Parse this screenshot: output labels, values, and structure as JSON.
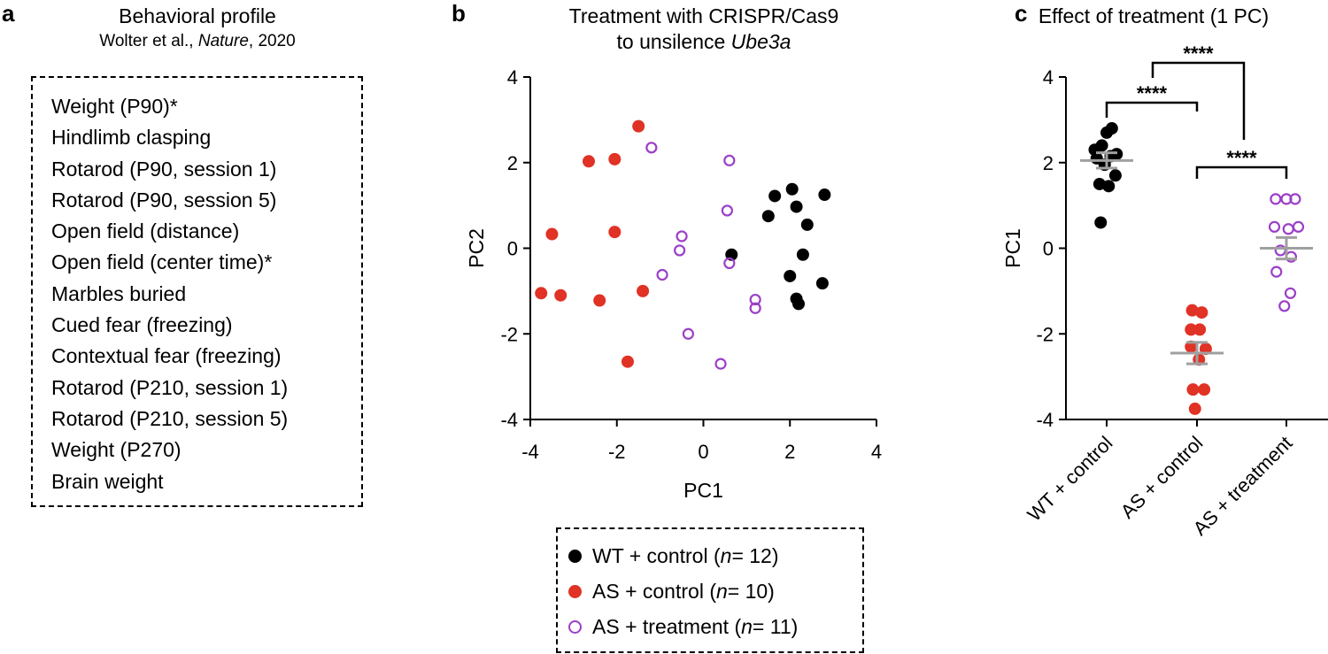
{
  "panel_a": {
    "letter": "a",
    "title": "Behavioral profile",
    "citation_authors": "Wolter et al., ",
    "citation_journal": "Nature",
    "citation_year": ", 2020",
    "measures": [
      "Weight (P90)*",
      "Hindlimb clasping",
      "Rotarod (P90, session 1)",
      "Rotarod (P90, session 5)",
      "Open field (distance)",
      "Open field (center time)*",
      "Marbles buried",
      "Cued fear (freezing)",
      "Contextual fear (freezing)",
      "Rotarod (P210, session 1)",
      "Rotarod (P210, session 5)",
      "Weight (P270)",
      "Brain weight"
    ]
  },
  "panel_b": {
    "letter": "b",
    "title_line1": "Treatment with CRISPR/Cas9",
    "title_line2_prefix": "to unsilence ",
    "title_line2_gene": "Ube3a"
  },
  "panel_c": {
    "letter": "c",
    "title": "Effect of treatment (1 PC)"
  },
  "legend": {
    "items": [
      {
        "label_prefix": "WT + control (",
        "n_label": "n",
        "label_suffix": " = 12)"
      },
      {
        "label_prefix": "AS + control (",
        "n_label": "n",
        "label_suffix": " = 10)"
      },
      {
        "label_prefix": "AS + treatment (",
        "n_label": "n",
        "label_suffix": " = 11)"
      }
    ]
  },
  "colors": {
    "wt": "#000000",
    "as_control": "#e03225",
    "as_treatment": "#9b3fc7",
    "mean_bar": "#a0a0a0"
  },
  "chart_data": [
    {
      "type": "scatter",
      "title": "Treatment with CRISPR/Cas9 to unsilence Ube3a",
      "xlabel": "PC1",
      "ylabel": "PC2",
      "xlim": [
        -4,
        4
      ],
      "ylim": [
        -4,
        4
      ],
      "xticks": [
        -4,
        -2,
        0,
        2,
        4
      ],
      "yticks": [
        -4,
        -2,
        0,
        2,
        4
      ],
      "series": [
        {
          "name": "WT + control",
          "style": "filled",
          "color_key": "wt",
          "points": [
            [
              1.65,
              1.22
            ],
            [
              2.05,
              1.38
            ],
            [
              2.8,
              1.25
            ],
            [
              1.5,
              0.75
            ],
            [
              2.15,
              0.97
            ],
            [
              2.4,
              0.55
            ],
            [
              0.65,
              -0.15
            ],
            [
              2.3,
              -0.15
            ],
            [
              2.0,
              -0.65
            ],
            [
              2.75,
              -0.82
            ],
            [
              2.15,
              -1.18
            ],
            [
              2.2,
              -1.3
            ]
          ]
        },
        {
          "name": "AS + control",
          "style": "filled",
          "color_key": "as_control",
          "points": [
            [
              -1.5,
              2.85
            ],
            [
              -2.65,
              2.03
            ],
            [
              -2.05,
              2.08
            ],
            [
              -3.5,
              0.33
            ],
            [
              -2.05,
              0.38
            ],
            [
              -3.75,
              -1.05
            ],
            [
              -3.3,
              -1.1
            ],
            [
              -1.4,
              -1.0
            ],
            [
              -2.4,
              -1.22
            ],
            [
              -1.75,
              -2.65
            ]
          ]
        },
        {
          "name": "AS + treatment",
          "style": "hollow",
          "color_key": "as_treatment",
          "points": [
            [
              -1.2,
              2.35
            ],
            [
              0.6,
              2.05
            ],
            [
              0.55,
              0.88
            ],
            [
              -0.5,
              0.28
            ],
            [
              -0.55,
              -0.05
            ],
            [
              0.6,
              -0.35
            ],
            [
              -0.95,
              -0.62
            ],
            [
              1.2,
              -1.2
            ],
            [
              1.2,
              -1.4
            ],
            [
              -0.35,
              -2.0
            ],
            [
              0.4,
              -2.7
            ]
          ]
        }
      ]
    },
    {
      "type": "scatter",
      "title": "Effect of treatment (1 PC)",
      "xlabel": "",
      "ylabel": "PC1",
      "ylim": [
        -4,
        4
      ],
      "yticks": [
        -4,
        -2,
        0,
        2,
        4
      ],
      "categories": [
        "WT + control",
        "AS + control",
        "AS + treatment"
      ],
      "series": [
        {
          "name": "WT + control",
          "style": "filled",
          "color_key": "wt",
          "points": [
            [
              -0.3,
              2.3
            ],
            [
              -0.12,
              2.4
            ],
            [
              0.0,
              2.7
            ],
            [
              0.13,
              2.8
            ],
            [
              -0.25,
              2.1
            ],
            [
              0.1,
              2.15
            ],
            [
              0.25,
              2.2
            ],
            [
              -0.05,
              1.95
            ],
            [
              0.22,
              1.7
            ],
            [
              0.05,
              1.45
            ],
            [
              -0.18,
              1.5
            ],
            [
              -0.15,
              0.6
            ]
          ],
          "mean": 2.05,
          "sem": 0.18
        },
        {
          "name": "AS + control",
          "style": "filled",
          "color_key": "as_control",
          "points": [
            [
              -0.12,
              -1.45
            ],
            [
              0.12,
              -1.5
            ],
            [
              -0.15,
              -1.9
            ],
            [
              0.07,
              -1.9
            ],
            [
              -0.15,
              -2.3
            ],
            [
              0.22,
              -2.35
            ],
            [
              0.05,
              -2.6
            ],
            [
              -0.1,
              -3.3
            ],
            [
              0.18,
              -3.3
            ],
            [
              -0.05,
              -3.75
            ]
          ],
          "mean": -2.45,
          "sem": 0.25
        },
        {
          "name": "AS + treatment",
          "style": "hollow",
          "color_key": "as_treatment",
          "points": [
            [
              -0.27,
              1.15
            ],
            [
              0.0,
              1.15
            ],
            [
              0.22,
              1.15
            ],
            [
              -0.3,
              0.5
            ],
            [
              0.05,
              0.45
            ],
            [
              0.3,
              0.5
            ],
            [
              -0.15,
              -0.05
            ],
            [
              0.12,
              -0.2
            ],
            [
              -0.25,
              -0.55
            ],
            [
              0.1,
              -1.05
            ],
            [
              -0.05,
              -1.35
            ]
          ],
          "mean": 0.0,
          "sem": 0.25
        }
      ],
      "significance": [
        {
          "from": "WT + control",
          "to": "AS + control",
          "label": "****"
        },
        {
          "from": "WT + control",
          "to": "AS + treatment",
          "label": "****"
        },
        {
          "from": "AS + control",
          "to": "AS + treatment",
          "label": "****"
        }
      ]
    }
  ]
}
